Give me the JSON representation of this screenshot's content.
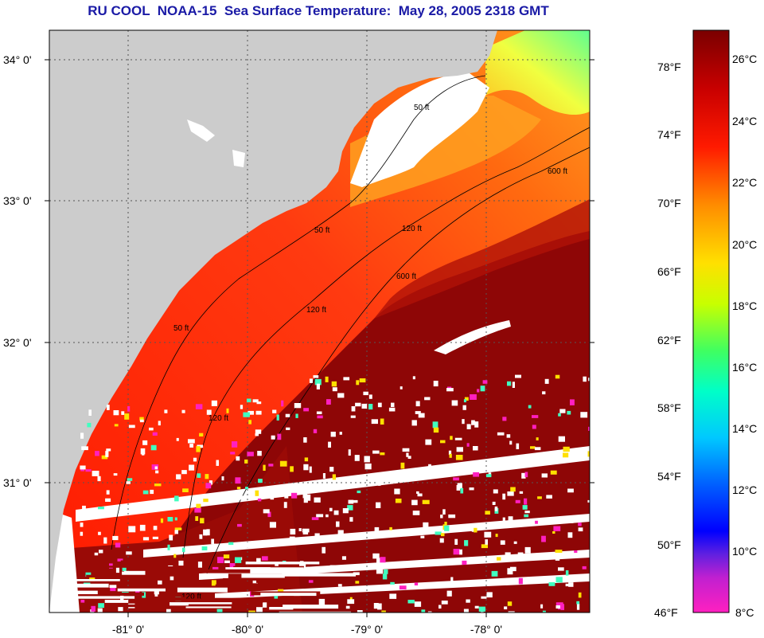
{
  "title": "RU COOL  NOAA-15  Sea Surface Temperature:  May 28, 2005 2318 GMT",
  "lat_labels": [
    "34° 0'",
    "33° 0'",
    "32° 0'",
    "31° 0'"
  ],
  "lon_labels": [
    "-81° 0'",
    "-80° 0'",
    "-79° 0'",
    "-78° 0'"
  ],
  "contour_labels": [
    "50 ft",
    "50 ft",
    "50 ft",
    "120 ft",
    "120 ft",
    "120 ft",
    "600 ft",
    "600 ft",
    "120 ft"
  ],
  "colorbar": {
    "fahrenheit": [
      "78°F",
      "74°F",
      "70°F",
      "66°F",
      "62°F",
      "58°F",
      "54°F",
      "50°F",
      "46°F"
    ],
    "celsius": [
      "26°C",
      "24°C",
      "22°C",
      "20°C",
      "18°C",
      "16°C",
      "14°C",
      "12°C",
      "10°C",
      "8°C"
    ]
  },
  "colors": {
    "title": "#1a1aa6",
    "land": "#cccccc",
    "warm": "#8b0000",
    "hot": "#ff1a00",
    "cloud": "#ffffff"
  }
}
